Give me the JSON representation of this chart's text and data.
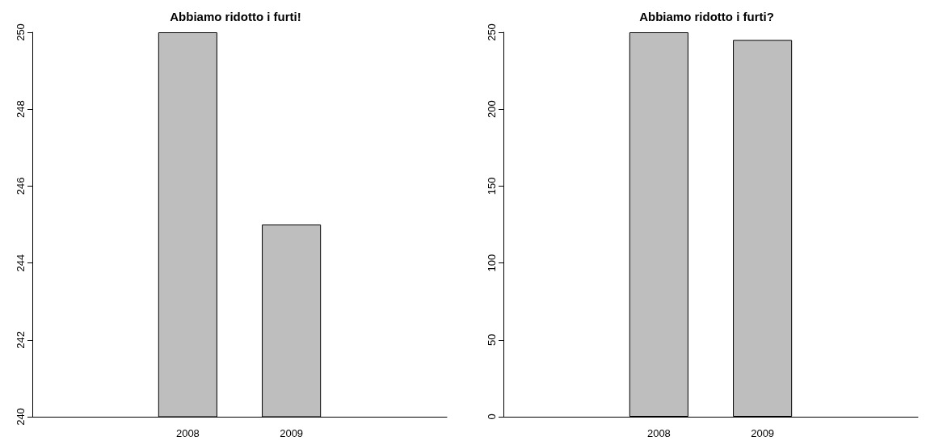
{
  "chart_data": [
    {
      "type": "bar",
      "title": "Abbiamo ridotto i furti!",
      "categories": [
        null,
        "2008",
        "2009",
        null
      ],
      "values": [
        null,
        250,
        245,
        null
      ],
      "color": "#bebebe",
      "ylim": [
        240,
        250
      ],
      "yticks": [
        240,
        242,
        244,
        246,
        248,
        250
      ],
      "grid": false
    },
    {
      "type": "bar",
      "title": "Abbiamo ridotto i furti?",
      "categories": [
        null,
        "2008",
        "2009",
        null
      ],
      "values": [
        null,
        250,
        245,
        null
      ],
      "color": "#bebebe",
      "ylim": [
        0,
        250
      ],
      "yticks": [
        0,
        50,
        100,
        150,
        200,
        250
      ],
      "grid": false
    }
  ]
}
